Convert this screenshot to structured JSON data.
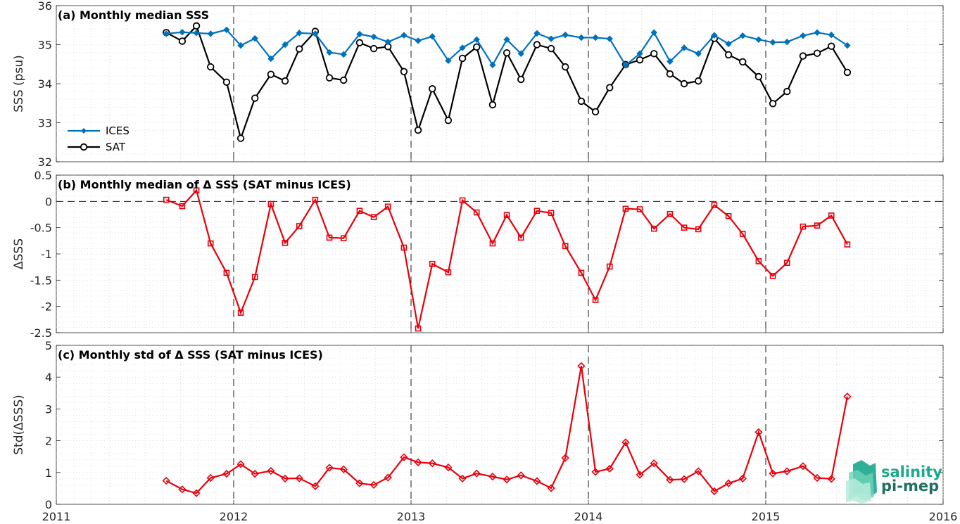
{
  "colors": {
    "ices": "#0072BD",
    "sat": "#000000",
    "delta": "#E8000B",
    "axis": "#262626",
    "logo": "#1AA98C"
  },
  "x_axis": {
    "range": [
      2011,
      2016
    ],
    "ticks": [
      "2011",
      "2012",
      "2013",
      "2014",
      "2015",
      "2016"
    ],
    "year_lines": [
      2012,
      2013,
      2014,
      2015
    ]
  },
  "logo": {
    "line1": "salinity",
    "line2": "pi-mep"
  },
  "chart_data": [
    {
      "type": "line",
      "title": "(a) Monthly median SSS",
      "ylabel": "SSS (psu)",
      "ylim": [
        32,
        36
      ],
      "yticks": [
        "32",
        "33",
        "34",
        "35",
        "36"
      ],
      "legend": "bottom-left",
      "x": [
        2011.62,
        2011.71,
        2011.79,
        2011.87,
        2011.96,
        2012.04,
        2012.12,
        2012.21,
        2012.29,
        2012.37,
        2012.46,
        2012.54,
        2012.62,
        2012.71,
        2012.79,
        2012.87,
        2012.96,
        2013.04,
        2013.12,
        2013.21,
        2013.29,
        2013.37,
        2013.46,
        2013.54,
        2013.62,
        2013.71,
        2013.79,
        2013.87,
        2013.96,
        2014.04,
        2014.12,
        2014.21,
        2014.29,
        2014.37,
        2014.46,
        2014.54,
        2014.62,
        2014.71,
        2014.79,
        2014.87,
        2014.96,
        2015.04,
        2015.12,
        2015.21,
        2015.29,
        2015.37,
        2015.46
      ],
      "series": [
        {
          "name": "ICES",
          "values": [
            35.28,
            35.32,
            35.3,
            35.28,
            35.38,
            34.98,
            35.16,
            34.64,
            35.0,
            35.3,
            35.28,
            34.8,
            34.75,
            35.27,
            35.2,
            35.07,
            35.24,
            35.1,
            35.21,
            34.59,
            34.92,
            35.13,
            34.48,
            35.13,
            34.77,
            35.29,
            35.15,
            35.25,
            35.18,
            35.18,
            35.15,
            34.47,
            34.77,
            35.31,
            34.57,
            34.92,
            34.77,
            35.24,
            35.02,
            35.23,
            35.13,
            35.06,
            35.07,
            35.23,
            35.31,
            35.25,
            34.98
          ]
        },
        {
          "name": "SAT",
          "values": [
            35.31,
            35.09,
            35.48,
            34.43,
            34.04,
            32.6,
            33.63,
            34.24,
            34.07,
            34.89,
            35.34,
            34.15,
            34.09,
            35.05,
            34.9,
            34.95,
            34.31,
            32.81,
            33.87,
            33.06,
            34.65,
            34.94,
            33.46,
            34.79,
            34.11,
            35.0,
            34.9,
            34.43,
            33.55,
            33.28,
            33.9,
            34.49,
            34.61,
            34.77,
            34.25,
            34.0,
            34.07,
            35.16,
            34.74,
            34.56,
            34.18,
            33.49,
            33.8,
            34.71,
            34.78,
            34.96,
            34.29
          ]
        }
      ]
    },
    {
      "type": "line",
      "title": "(b) Monthly median of Δ SSS (SAT minus ICES)",
      "ylabel": "ΔSSS",
      "ylim": [
        -2.5,
        0.5
      ],
      "yticks": [
        "-2.5",
        "-2",
        "-1.5",
        "-1",
        "-0.5",
        "0",
        "0.5"
      ],
      "zero_line": true,
      "x": [
        2011.62,
        2011.71,
        2011.79,
        2011.87,
        2011.96,
        2012.04,
        2012.12,
        2012.21,
        2012.29,
        2012.37,
        2012.46,
        2012.54,
        2012.62,
        2012.71,
        2012.79,
        2012.87,
        2012.96,
        2013.04,
        2013.12,
        2013.21,
        2013.29,
        2013.37,
        2013.46,
        2013.54,
        2013.62,
        2013.71,
        2013.79,
        2013.87,
        2013.96,
        2014.04,
        2014.12,
        2014.21,
        2014.29,
        2014.37,
        2014.46,
        2014.54,
        2014.62,
        2014.71,
        2014.79,
        2014.87,
        2014.96,
        2015.04,
        2015.12,
        2015.21,
        2015.29,
        2015.37,
        2015.46
      ],
      "values": [
        0.03,
        -0.09,
        0.21,
        -0.8,
        -1.36,
        -2.12,
        -1.44,
        -0.05,
        -0.79,
        -0.47,
        0.03,
        -0.69,
        -0.7,
        -0.18,
        -0.3,
        -0.1,
        -0.88,
        -2.42,
        -1.19,
        -1.35,
        0.02,
        -0.21,
        -0.8,
        -0.26,
        -0.69,
        -0.18,
        -0.22,
        -0.85,
        -1.36,
        -1.88,
        -1.24,
        -0.14,
        -0.15,
        -0.52,
        -0.24,
        -0.5,
        -0.53,
        -0.07,
        -0.28,
        -0.62,
        -1.14,
        -1.42,
        -1.17,
        -0.48,
        -0.46,
        -0.27,
        -0.82
      ]
    },
    {
      "type": "line",
      "title": "(c) Monthly std of Δ SSS (SAT minus ICES)",
      "ylabel": "Std(ΔSSS)",
      "ylim": [
        0,
        5
      ],
      "yticks": [
        "0",
        "1",
        "2",
        "3",
        "4",
        "5"
      ],
      "x": [
        2011.62,
        2011.71,
        2011.79,
        2011.87,
        2011.96,
        2012.04,
        2012.12,
        2012.21,
        2012.29,
        2012.37,
        2012.46,
        2012.54,
        2012.62,
        2012.71,
        2012.79,
        2012.87,
        2012.96,
        2013.04,
        2013.12,
        2013.21,
        2013.29,
        2013.37,
        2013.46,
        2013.54,
        2013.62,
        2013.71,
        2013.79,
        2013.87,
        2013.96,
        2014.04,
        2014.12,
        2014.21,
        2014.29,
        2014.37,
        2014.46,
        2014.54,
        2014.62,
        2014.71,
        2014.79,
        2014.87,
        2014.96,
        2015.04,
        2015.12,
        2015.21,
        2015.29,
        2015.37,
        2015.46
      ],
      "values": [
        0.74,
        0.47,
        0.35,
        0.83,
        0.96,
        1.26,
        0.96,
        1.05,
        0.81,
        0.82,
        0.57,
        1.15,
        1.1,
        0.66,
        0.61,
        0.84,
        1.48,
        1.32,
        1.29,
        1.16,
        0.81,
        0.97,
        0.87,
        0.78,
        0.91,
        0.73,
        0.51,
        1.46,
        4.35,
        1.02,
        1.12,
        1.95,
        0.93,
        1.29,
        0.77,
        0.79,
        1.04,
        0.41,
        0.66,
        0.81,
        2.27,
        0.97,
        1.04,
        1.2,
        0.83,
        0.8,
        3.39
      ]
    }
  ]
}
